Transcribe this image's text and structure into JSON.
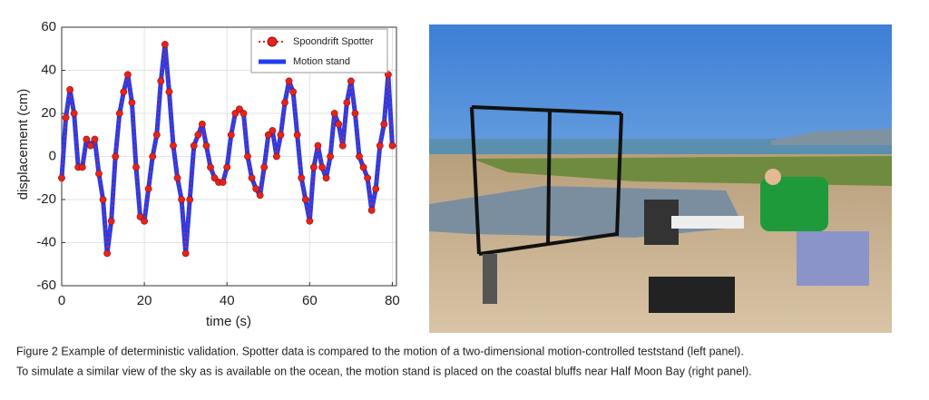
{
  "chart_data": {
    "type": "line",
    "xlabel": "time (s)",
    "ylabel": "displacement (cm)",
    "x": [
      0,
      1,
      2,
      3,
      4,
      5,
      6,
      7,
      8,
      9,
      10,
      11,
      12,
      13,
      14,
      15,
      16,
      17,
      18,
      19,
      20,
      21,
      22,
      23,
      24,
      25,
      26,
      27,
      28,
      29,
      30,
      31,
      32,
      33,
      34,
      35,
      36,
      37,
      38,
      39,
      40,
      41,
      42,
      43,
      44,
      45,
      46,
      47,
      48,
      49,
      50,
      51,
      52,
      53,
      54,
      55,
      56,
      57,
      58,
      59,
      60,
      61,
      62,
      63,
      64,
      65,
      66,
      67,
      68,
      69,
      70,
      71,
      72,
      73,
      74,
      75,
      76,
      77,
      78,
      79,
      80
    ],
    "series": [
      {
        "name": "Spoondrift Spotter",
        "color": "#e8221b",
        "style": "dotted-markers",
        "values": [
          -10,
          18,
          31,
          20,
          -5,
          -5,
          8,
          5,
          8,
          -8,
          -20,
          -45,
          -30,
          0,
          20,
          30,
          38,
          25,
          -5,
          -28,
          -30,
          -15,
          0,
          10,
          35,
          52,
          30,
          5,
          -10,
          -20,
          -45,
          -20,
          5,
          10,
          15,
          5,
          -5,
          -10,
          -12,
          -12,
          -5,
          10,
          20,
          22,
          20,
          0,
          -10,
          -15,
          -18,
          -5,
          10,
          12,
          0,
          10,
          25,
          35,
          30,
          10,
          -10,
          -20,
          -30,
          -5,
          5,
          -5,
          -10,
          0,
          20,
          15,
          5,
          25,
          35,
          20,
          0,
          -5,
          -10,
          -25,
          -15,
          5,
          15,
          38,
          5
        ]
      },
      {
        "name": "Motion stand",
        "color": "#1f3df5",
        "style": "thick-line",
        "values": [
          -10,
          18,
          31,
          20,
          -5,
          -5,
          8,
          5,
          8,
          -8,
          -20,
          -45,
          -30,
          0,
          20,
          30,
          38,
          25,
          -5,
          -28,
          -30,
          -15,
          0,
          10,
          35,
          52,
          30,
          5,
          -10,
          -20,
          -45,
          -20,
          5,
          10,
          15,
          5,
          -5,
          -10,
          -12,
          -12,
          -5,
          10,
          20,
          22,
          20,
          0,
          -10,
          -15,
          -18,
          -5,
          10,
          12,
          0,
          10,
          25,
          35,
          30,
          10,
          -10,
          -20,
          -30,
          -5,
          5,
          -5,
          -10,
          0,
          20,
          15,
          5,
          25,
          35,
          20,
          0,
          -5,
          -10,
          -25,
          -15,
          5,
          15,
          38,
          5
        ]
      }
    ],
    "xlim": [
      0,
      81
    ],
    "xticks": [
      0,
      20,
      40,
      60,
      80
    ],
    "ylim": [
      -60,
      60
    ],
    "yticks": [
      -60,
      -40,
      -20,
      0,
      20,
      40,
      60
    ],
    "grid": true,
    "legend": "upper right"
  },
  "caption": [
    "Figure 2 Example of deterministic validation. Spotter data is compared to the motion of a two-dimensional motion-controlled teststand (left panel).",
    "To simulate a similar view of the sky as is available on the ocean, the motion stand is placed on the coastal bluffs near Half Moon Bay (right panel)."
  ]
}
